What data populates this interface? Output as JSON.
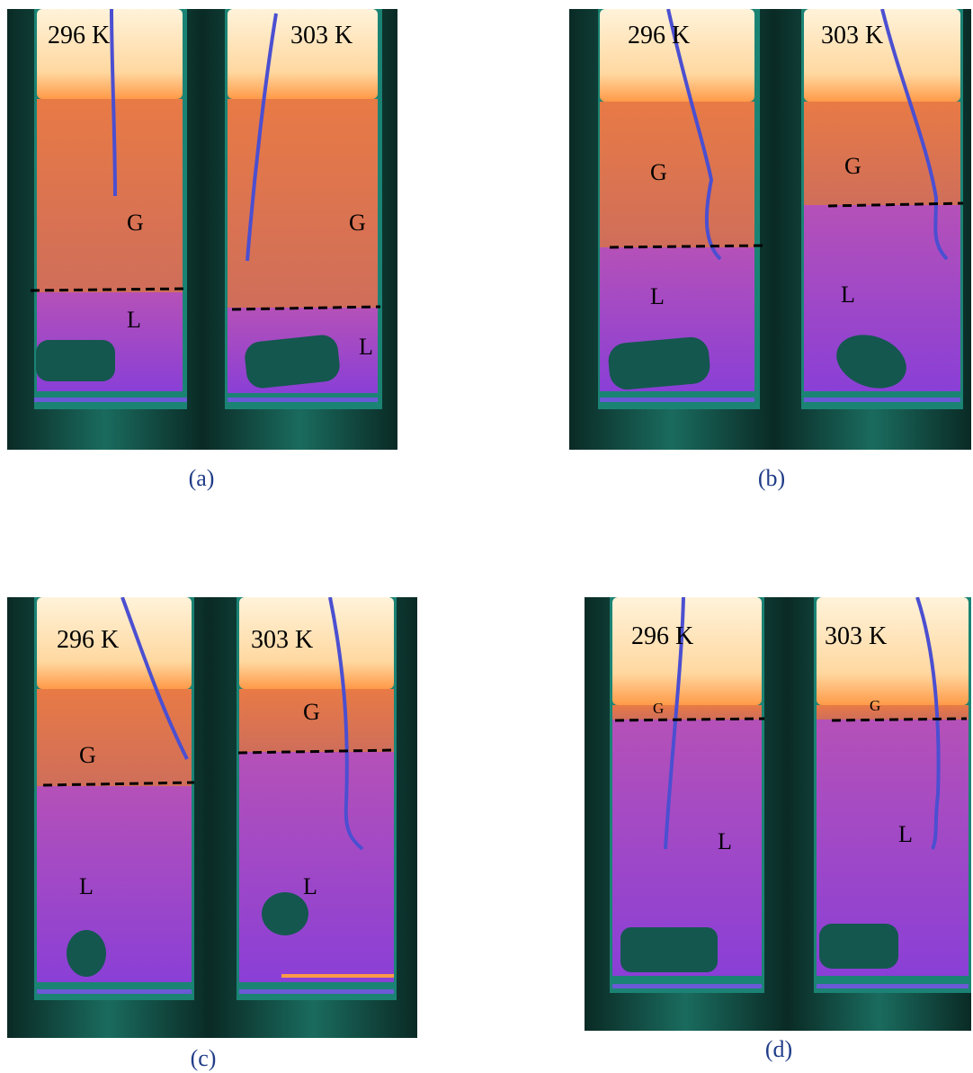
{
  "figure": {
    "colors": {
      "shell": "#0f3e36",
      "shell_edge": "#1f7d6a",
      "gas": "#f07a3c",
      "liquid": "#8a3fd6",
      "hot": "#fff3da",
      "probe": "#4b4fd1",
      "caption": "#1f3c88"
    },
    "panels": [
      {
        "caption": "(a)",
        "tubes": [
          {
            "temperature": "296 K",
            "gas_label": "G",
            "liquid_label": "L"
          },
          {
            "temperature": "303 K",
            "gas_label": "G",
            "liquid_label": "L"
          }
        ]
      },
      {
        "caption": "(b)",
        "tubes": [
          {
            "temperature": "296 K",
            "gas_label": "G",
            "liquid_label": "L"
          },
          {
            "temperature": "303 K",
            "gas_label": "G",
            "liquid_label": "L"
          }
        ]
      },
      {
        "caption": "(c)",
        "tubes": [
          {
            "temperature": "296 K",
            "gas_label": "G",
            "liquid_label": "L"
          },
          {
            "temperature": "303 K",
            "gas_label": "G",
            "liquid_label": "L"
          }
        ]
      },
      {
        "caption": "(d)",
        "tubes": [
          {
            "temperature": "296 K",
            "gas_label": "G",
            "liquid_label": "L"
          },
          {
            "temperature": "303 K",
            "gas_label": "G",
            "liquid_label": "L"
          }
        ]
      }
    ]
  }
}
